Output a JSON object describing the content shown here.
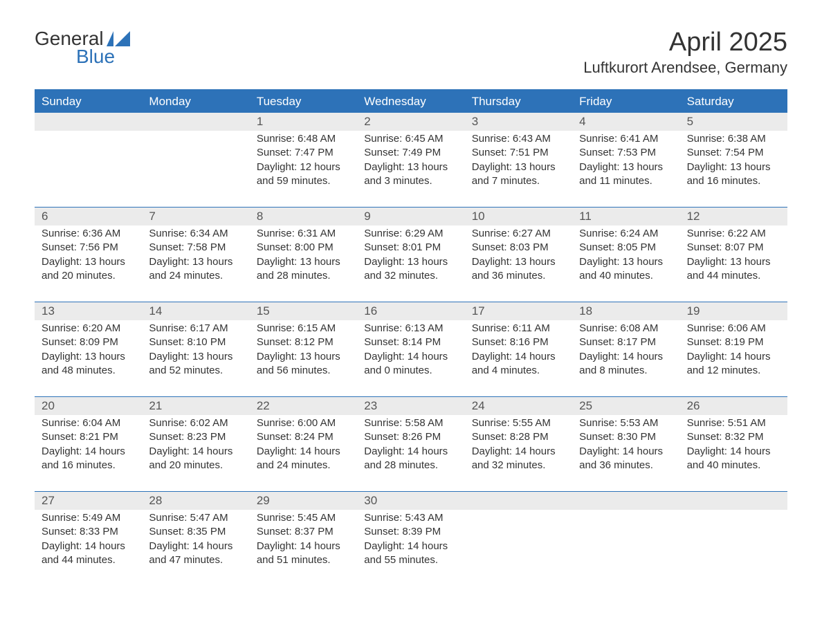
{
  "brand": {
    "word1": "General",
    "word2": "Blue"
  },
  "colors": {
    "brand_blue": "#2d72b8",
    "header_bg": "#2d72b8",
    "header_text": "#ffffff",
    "daynum_bg": "#ebebeb",
    "daynum_text": "#555555",
    "body_text": "#333333",
    "page_bg": "#ffffff",
    "row_border": "#2d72b8"
  },
  "title": "April 2025",
  "location": "Luftkurort Arendsee, Germany",
  "weekdays": [
    "Sunday",
    "Monday",
    "Tuesday",
    "Wednesday",
    "Thursday",
    "Friday",
    "Saturday"
  ],
  "layout": {
    "columns": 7,
    "rows": 5,
    "first_day_column_index": 2
  },
  "weeks": [
    [
      {
        "day": "",
        "sunrise": "",
        "sunset": "",
        "daylight": ""
      },
      {
        "day": "",
        "sunrise": "",
        "sunset": "",
        "daylight": ""
      },
      {
        "day": "1",
        "sunrise": "Sunrise: 6:48 AM",
        "sunset": "Sunset: 7:47 PM",
        "daylight": "Daylight: 12 hours and 59 minutes."
      },
      {
        "day": "2",
        "sunrise": "Sunrise: 6:45 AM",
        "sunset": "Sunset: 7:49 PM",
        "daylight": "Daylight: 13 hours and 3 minutes."
      },
      {
        "day": "3",
        "sunrise": "Sunrise: 6:43 AM",
        "sunset": "Sunset: 7:51 PM",
        "daylight": "Daylight: 13 hours and 7 minutes."
      },
      {
        "day": "4",
        "sunrise": "Sunrise: 6:41 AM",
        "sunset": "Sunset: 7:53 PM",
        "daylight": "Daylight: 13 hours and 11 minutes."
      },
      {
        "day": "5",
        "sunrise": "Sunrise: 6:38 AM",
        "sunset": "Sunset: 7:54 PM",
        "daylight": "Daylight: 13 hours and 16 minutes."
      }
    ],
    [
      {
        "day": "6",
        "sunrise": "Sunrise: 6:36 AM",
        "sunset": "Sunset: 7:56 PM",
        "daylight": "Daylight: 13 hours and 20 minutes."
      },
      {
        "day": "7",
        "sunrise": "Sunrise: 6:34 AM",
        "sunset": "Sunset: 7:58 PM",
        "daylight": "Daylight: 13 hours and 24 minutes."
      },
      {
        "day": "8",
        "sunrise": "Sunrise: 6:31 AM",
        "sunset": "Sunset: 8:00 PM",
        "daylight": "Daylight: 13 hours and 28 minutes."
      },
      {
        "day": "9",
        "sunrise": "Sunrise: 6:29 AM",
        "sunset": "Sunset: 8:01 PM",
        "daylight": "Daylight: 13 hours and 32 minutes."
      },
      {
        "day": "10",
        "sunrise": "Sunrise: 6:27 AM",
        "sunset": "Sunset: 8:03 PM",
        "daylight": "Daylight: 13 hours and 36 minutes."
      },
      {
        "day": "11",
        "sunrise": "Sunrise: 6:24 AM",
        "sunset": "Sunset: 8:05 PM",
        "daylight": "Daylight: 13 hours and 40 minutes."
      },
      {
        "day": "12",
        "sunrise": "Sunrise: 6:22 AM",
        "sunset": "Sunset: 8:07 PM",
        "daylight": "Daylight: 13 hours and 44 minutes."
      }
    ],
    [
      {
        "day": "13",
        "sunrise": "Sunrise: 6:20 AM",
        "sunset": "Sunset: 8:09 PM",
        "daylight": "Daylight: 13 hours and 48 minutes."
      },
      {
        "day": "14",
        "sunrise": "Sunrise: 6:17 AM",
        "sunset": "Sunset: 8:10 PM",
        "daylight": "Daylight: 13 hours and 52 minutes."
      },
      {
        "day": "15",
        "sunrise": "Sunrise: 6:15 AM",
        "sunset": "Sunset: 8:12 PM",
        "daylight": "Daylight: 13 hours and 56 minutes."
      },
      {
        "day": "16",
        "sunrise": "Sunrise: 6:13 AM",
        "sunset": "Sunset: 8:14 PM",
        "daylight": "Daylight: 14 hours and 0 minutes."
      },
      {
        "day": "17",
        "sunrise": "Sunrise: 6:11 AM",
        "sunset": "Sunset: 8:16 PM",
        "daylight": "Daylight: 14 hours and 4 minutes."
      },
      {
        "day": "18",
        "sunrise": "Sunrise: 6:08 AM",
        "sunset": "Sunset: 8:17 PM",
        "daylight": "Daylight: 14 hours and 8 minutes."
      },
      {
        "day": "19",
        "sunrise": "Sunrise: 6:06 AM",
        "sunset": "Sunset: 8:19 PM",
        "daylight": "Daylight: 14 hours and 12 minutes."
      }
    ],
    [
      {
        "day": "20",
        "sunrise": "Sunrise: 6:04 AM",
        "sunset": "Sunset: 8:21 PM",
        "daylight": "Daylight: 14 hours and 16 minutes."
      },
      {
        "day": "21",
        "sunrise": "Sunrise: 6:02 AM",
        "sunset": "Sunset: 8:23 PM",
        "daylight": "Daylight: 14 hours and 20 minutes."
      },
      {
        "day": "22",
        "sunrise": "Sunrise: 6:00 AM",
        "sunset": "Sunset: 8:24 PM",
        "daylight": "Daylight: 14 hours and 24 minutes."
      },
      {
        "day": "23",
        "sunrise": "Sunrise: 5:58 AM",
        "sunset": "Sunset: 8:26 PM",
        "daylight": "Daylight: 14 hours and 28 minutes."
      },
      {
        "day": "24",
        "sunrise": "Sunrise: 5:55 AM",
        "sunset": "Sunset: 8:28 PM",
        "daylight": "Daylight: 14 hours and 32 minutes."
      },
      {
        "day": "25",
        "sunrise": "Sunrise: 5:53 AM",
        "sunset": "Sunset: 8:30 PM",
        "daylight": "Daylight: 14 hours and 36 minutes."
      },
      {
        "day": "26",
        "sunrise": "Sunrise: 5:51 AM",
        "sunset": "Sunset: 8:32 PM",
        "daylight": "Daylight: 14 hours and 40 minutes."
      }
    ],
    [
      {
        "day": "27",
        "sunrise": "Sunrise: 5:49 AM",
        "sunset": "Sunset: 8:33 PM",
        "daylight": "Daylight: 14 hours and 44 minutes."
      },
      {
        "day": "28",
        "sunrise": "Sunrise: 5:47 AM",
        "sunset": "Sunset: 8:35 PM",
        "daylight": "Daylight: 14 hours and 47 minutes."
      },
      {
        "day": "29",
        "sunrise": "Sunrise: 5:45 AM",
        "sunset": "Sunset: 8:37 PM",
        "daylight": "Daylight: 14 hours and 51 minutes."
      },
      {
        "day": "30",
        "sunrise": "Sunrise: 5:43 AM",
        "sunset": "Sunset: 8:39 PM",
        "daylight": "Daylight: 14 hours and 55 minutes."
      },
      {
        "day": "",
        "sunrise": "",
        "sunset": "",
        "daylight": ""
      },
      {
        "day": "",
        "sunrise": "",
        "sunset": "",
        "daylight": ""
      },
      {
        "day": "",
        "sunrise": "",
        "sunset": "",
        "daylight": ""
      }
    ]
  ]
}
